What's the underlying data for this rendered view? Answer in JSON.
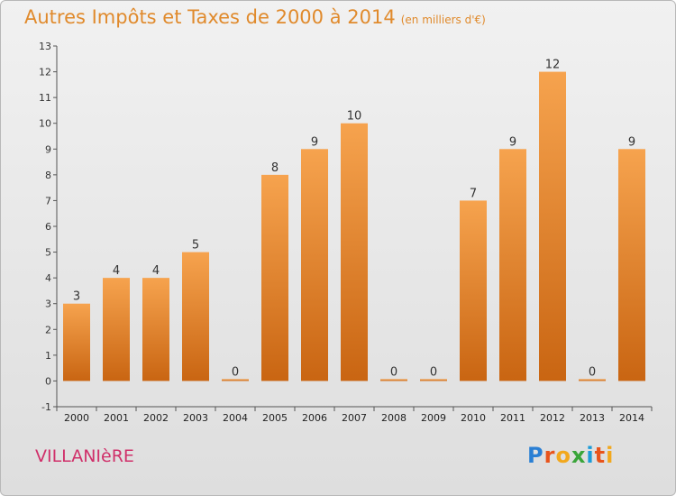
{
  "header": {
    "title": "Autres Impôts et Taxes de 2000 à 2014",
    "unit": "(en milliers d'€)"
  },
  "footer": {
    "place": "VILLANIèRE",
    "logo_text": "Proxiti"
  },
  "colors": {
    "title": "#e08a2c",
    "place": "#d0306a",
    "bar_top": "#f6a34e",
    "bar_bottom": "#c96512"
  },
  "chart_data": {
    "type": "bar",
    "title": "Autres Impôts et Taxes de 2000 à 2014",
    "categories": [
      "2000",
      "2001",
      "2002",
      "2003",
      "2004",
      "2005",
      "2006",
      "2007",
      "2008",
      "2009",
      "2010",
      "2011",
      "2012",
      "2013",
      "2014"
    ],
    "values": [
      3,
      4,
      4,
      5,
      0,
      8,
      9,
      10,
      0,
      0,
      7,
      9,
      12,
      0,
      9
    ],
    "ylim": [
      -1,
      13
    ],
    "yticks": [
      -1,
      0,
      1,
      2,
      3,
      4,
      5,
      6,
      7,
      8,
      9,
      10,
      11,
      12,
      13
    ],
    "grid": false,
    "legend": "none"
  }
}
